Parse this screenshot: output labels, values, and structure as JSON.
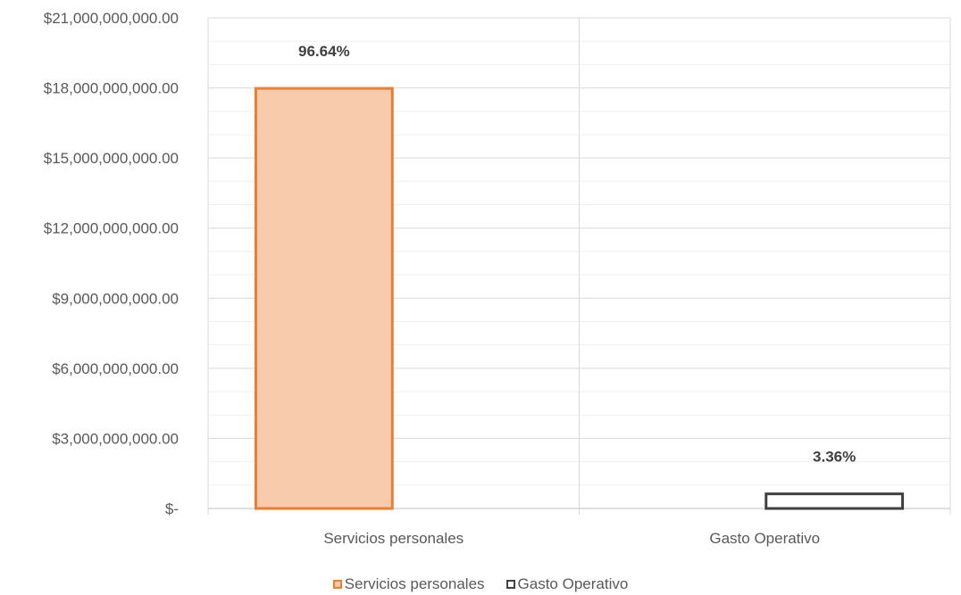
{
  "chart_data": {
    "type": "bar",
    "categories": [
      "Servicios personales",
      "Gasto Operativo"
    ],
    "series": [
      {
        "name": "Servicios personales",
        "values": [
          17980000000,
          null
        ],
        "data_labels": [
          "96.64%",
          null
        ],
        "fill": "#F8CBAD",
        "stroke": "#ED7D31"
      },
      {
        "name": "Gasto Operativo",
        "values": [
          null,
          625000000
        ],
        "data_labels": [
          null,
          "3.36%"
        ],
        "fill": "#FFFFFF",
        "stroke": "#404040"
      }
    ],
    "y_ticks": [
      0,
      3000000000,
      6000000000,
      9000000000,
      12000000000,
      15000000000,
      18000000000,
      21000000000
    ],
    "y_tick_labels": [
      "$-",
      "$3,000,000,000.00",
      "$6,000,000,000.00",
      "$9,000,000,000.00",
      "$12,000,000,000.00",
      "$15,000,000,000.00",
      "$18,000,000,000.00",
      "$21,000,000,000.00"
    ],
    "ylim": [
      0,
      21000000000
    ],
    "minor_gridlines": true,
    "grid": true,
    "legend_position": "bottom",
    "title": "",
    "xlabel": "",
    "ylabel": ""
  }
}
